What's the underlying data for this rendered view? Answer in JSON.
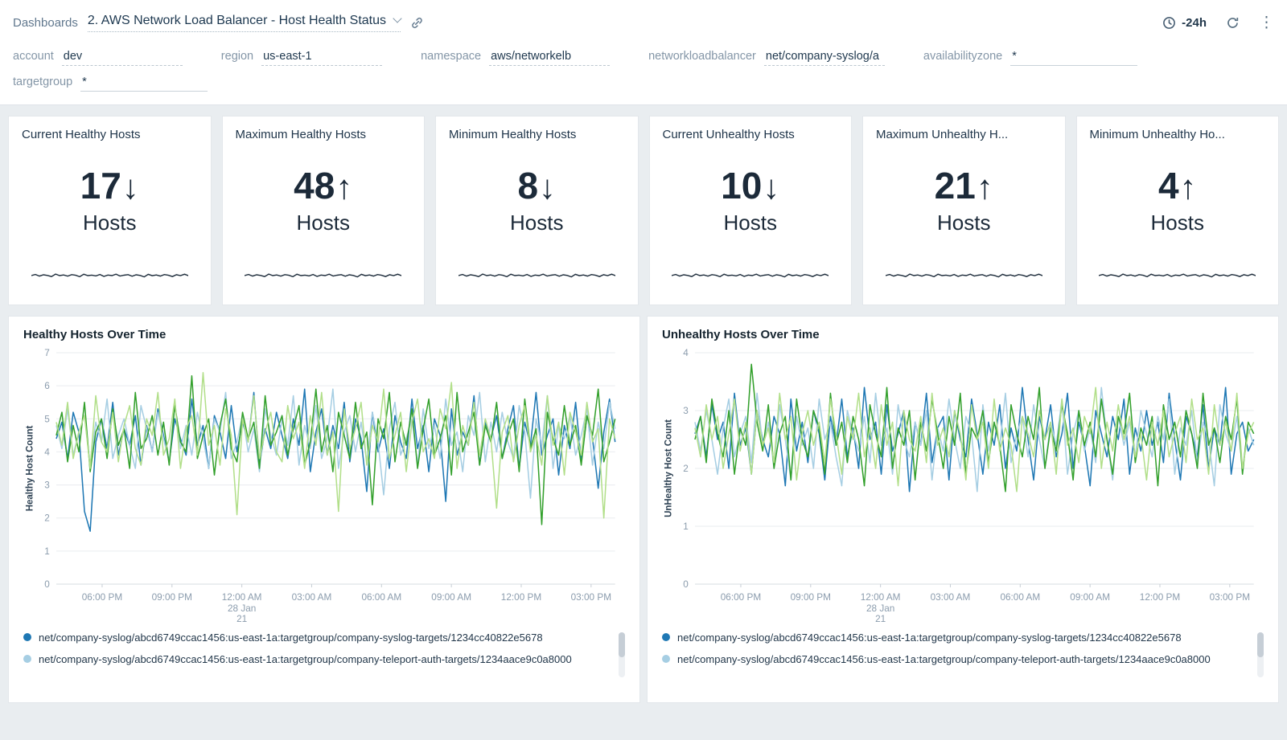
{
  "header": {
    "breadcrumb": "Dashboards",
    "title": "2. AWS Network Load Balancer - Host Health Status",
    "time_range": "-24h"
  },
  "filters": [
    {
      "label": "account",
      "value": "dev"
    },
    {
      "label": "region",
      "value": "us-east-1"
    },
    {
      "label": "namespace",
      "value": "aws/networkelb"
    },
    {
      "label": "networkloadbalancer",
      "value": "net/company-syslog/a"
    },
    {
      "label": "availabilityzone",
      "value": "*"
    },
    {
      "label": "targetgroup",
      "value": "*"
    }
  ],
  "stat_panels": [
    {
      "title": "Current Healthy Hosts",
      "value": "17",
      "arrow": "↓",
      "unit": "Hosts"
    },
    {
      "title": "Maximum Healthy Hosts",
      "value": "48",
      "arrow": "↑",
      "unit": "Hosts"
    },
    {
      "title": "Minimum Healthy Hosts",
      "value": "8",
      "arrow": "↓",
      "unit": "Hosts"
    },
    {
      "title": "Current Unhealthy Hosts",
      "value": "10",
      "arrow": "↓",
      "unit": "Hosts"
    },
    {
      "title": "Maximum Unhealthy H...",
      "value": "21",
      "arrow": "↑",
      "unit": "Hosts"
    },
    {
      "title": "Minimum Unhealthy Ho...",
      "value": "4",
      "arrow": "↑",
      "unit": "Hosts"
    }
  ],
  "sparkline": [
    0.5,
    0.62,
    0.45,
    0.58,
    0.52,
    0.4,
    0.66,
    0.5,
    0.57,
    0.44,
    0.6,
    0.53,
    0.38,
    0.64,
    0.5,
    0.55,
    0.47,
    0.62,
    0.42,
    0.56,
    0.5,
    0.65,
    0.46,
    0.54,
    0.6,
    0.43,
    0.58,
    0.52,
    0.37,
    0.63,
    0.49,
    0.57,
    0.45,
    0.61,
    0.53,
    0.4,
    0.59,
    0.5,
    0.64,
    0.48
  ],
  "chart_data": [
    {
      "type": "line",
      "title": "Healthy Hosts Over Time",
      "ylabel": "Healthy Host Count",
      "ylim": [
        0,
        7
      ],
      "x_ticks": [
        "06:00 PM",
        "09:00 PM",
        "12:00 AM",
        "03:00 AM",
        "06:00 AM",
        "09:00 AM",
        "12:00 PM",
        "03:00 PM"
      ],
      "x_date": [
        "28 Jan",
        "21"
      ],
      "date_tick_index": 2,
      "grid": true,
      "legend_position": "bottom",
      "legend": [
        {
          "color": "#1f78b4",
          "label": "net/company-syslog/abcd6749ccac1456:us-east-1a:targetgroup/company-syslog-targets/1234cc40822e5678"
        },
        {
          "color": "#a6cee3",
          "label": "net/company-syslog/abcd6749ccac1456:us-east-1a:targetgroup/company-teleport-auth-targets/1234aace9c0a8000"
        }
      ],
      "series": [
        {
          "name": "net/company-syslog/abcd6749ccac1456:us-east-1a:targetgroup/company-syslog-targets/1234cc40822e5678",
          "color": "#1f78b4",
          "values": [
            4.4,
            4.9,
            3.8,
            5.2,
            4.6,
            2.2,
            1.6,
            4.3,
            5.0,
            4.1,
            5.5,
            3.9,
            4.7,
            4.2,
            5.1,
            3.6,
            4.8,
            4.0,
            5.3,
            4.5,
            3.7,
            5.0,
            4.4,
            3.9,
            5.6,
            4.2,
            4.8,
            3.5,
            5.1,
            4.6,
            3.8,
            5.4,
            4.0,
            4.9,
            4.3,
            5.8,
            3.6,
            4.7,
            4.1,
            5.2,
            4.5,
            3.8,
            5.0,
            4.2,
            5.9,
            3.4,
            4.6,
            5.3,
            3.9,
            4.8,
            4.1,
            5.5,
            3.7,
            5.0,
            4.4,
            2.8,
            5.2,
            4.0,
            4.7,
            3.5,
            5.1,
            4.3,
            3.8,
            5.6,
            4.1,
            4.8,
            3.4,
            5.0,
            4.5,
            2.5,
            5.3,
            3.9,
            4.6,
            4.2,
            5.7,
            3.6,
            4.9,
            4.4,
            5.1,
            3.8,
            4.7,
            5.4,
            3.5,
            4.9,
            4.2,
            5.8,
            3.9,
            4.5,
            5.0,
            3.3,
            4.8,
            4.1,
            5.5,
            3.7,
            5.1,
            4.4,
            2.9,
            4.6,
            5.6,
            4.3
          ]
        },
        {
          "name": "net/company-syslog/abcd6749ccac1456:us-east-1a:targetgroup/company-teleport-auth-targets/1234aace9c0a8000",
          "color": "#a6cee3",
          "values": [
            4.8,
            4.1,
            5.3,
            3.9,
            4.6,
            5.1,
            3.6,
            4.9,
            4.3,
            5.6,
            3.8,
            4.5,
            5.0,
            4.2,
            3.5,
            5.4,
            4.7,
            4.0,
            5.2,
            4.4,
            3.7,
            5.5,
            4.1,
            4.8,
            3.9,
            5.2,
            4.4,
            3.5,
            5.0,
            4.6,
            5.8,
            3.8,
            4.3,
            5.1,
            4.0,
            4.7,
            3.4,
            5.3,
            4.5,
            3.9,
            5.0,
            4.2,
            5.7,
            3.6,
            4.8,
            4.1,
            5.4,
            3.8,
            4.4,
            5.9,
            3.5,
            4.6,
            5.1,
            4.0,
            4.9,
            3.7,
            5.2,
            4.3,
            2.7,
            4.7,
            5.5,
            3.9,
            4.4,
            5.0,
            3.6,
            5.3,
            4.1,
            4.8,
            3.8,
            5.6,
            4.2,
            4.6,
            3.4,
            5.1,
            4.5,
            5.8,
            3.7,
            4.9,
            4.0,
            5.2,
            4.3,
            3.8,
            5.4,
            4.6,
            2.6,
            5.0,
            4.2,
            5.7,
            3.5,
            4.8,
            4.4,
            5.1,
            3.9,
            4.5,
            5.3,
            3.6,
            4.9,
            4.1,
            5.5,
            4.7
          ]
        },
        {
          "name": "",
          "color": "#33a02c",
          "values": [
            4.5,
            5.2,
            3.7,
            4.8,
            4.0,
            5.5,
            3.4,
            4.6,
            5.0,
            3.8,
            5.3,
            4.2,
            4.7,
            3.5,
            5.8,
            4.1,
            4.4,
            5.1,
            3.9,
            4.9,
            3.6,
            5.4,
            4.3,
            4.0,
            6.3,
            3.8,
            4.5,
            5.0,
            3.3,
            4.8,
            5.6,
            4.1,
            3.7,
            5.2,
            4.4,
            4.9,
            3.5,
            5.7,
            4.2,
            4.6,
            5.1,
            3.9,
            4.7,
            5.4,
            3.6,
            4.3,
            5.9,
            4.0,
            4.8,
            3.4,
            5.2,
            4.5,
            3.8,
            5.5,
            4.1,
            4.6,
            2.4,
            5.0,
            4.4,
            5.8,
            3.7,
            4.9,
            4.2,
            5.3,
            3.5,
            4.7,
            5.6,
            3.9,
            4.4,
            5.1,
            3.3,
            5.8,
            4.0,
            4.6,
            5.2,
            3.6,
            4.8,
            4.3,
            5.5,
            3.8,
            4.5,
            5.0,
            3.4,
            5.6,
            4.1,
            4.7,
            1.8,
            5.2,
            4.4,
            3.9,
            5.4,
            4.2,
            4.8,
            3.6,
            5.1,
            4.5,
            5.9,
            3.7,
            4.3,
            5.0
          ]
        },
        {
          "name": "",
          "color": "#b2df8a",
          "values": [
            4.9,
            4.2,
            5.5,
            3.8,
            4.6,
            5.1,
            3.5,
            5.7,
            4.3,
            4.0,
            5.2,
            3.7,
            4.8,
            5.4,
            4.1,
            3.6,
            5.0,
            4.5,
            5.8,
            3.9,
            4.4,
            5.6,
            3.5,
            4.7,
            5.1,
            3.9,
            6.4,
            4.2,
            4.8,
            3.6,
            5.3,
            4.5,
            2.1,
            5.0,
            4.3,
            5.7,
            3.8,
            4.6,
            5.2,
            4.0,
            3.7,
            5.4,
            4.4,
            4.9,
            3.5,
            5.1,
            4.2,
            5.8,
            3.9,
            4.6,
            2.2,
            5.3,
            4.1,
            4.7,
            5.5,
            3.6,
            4.8,
            4.3,
            5.9,
            3.8,
            4.5,
            5.2,
            3.4,
            4.9,
            5.6,
            4.0,
            4.4,
            3.8,
            5.3,
            4.7,
            6.1,
            3.5,
            4.8,
            4.2,
            5.5,
            3.9,
            5.0,
            4.4,
            2.3,
            4.6,
            5.1,
            3.7,
            4.8,
            5.4,
            4.0,
            4.5,
            3.6,
            5.7,
            4.2,
            4.9,
            3.3,
            5.2,
            4.6,
            3.9,
            5.5,
            4.3,
            4.7,
            2.0,
            5.0,
            4.4
          ]
        }
      ]
    },
    {
      "type": "line",
      "title": "Unhealthy Hosts Over Time",
      "ylabel": "UnHealthy Host Count",
      "ylim": [
        0,
        4
      ],
      "x_ticks": [
        "06:00 PM",
        "09:00 PM",
        "12:00 AM",
        "03:00 AM",
        "06:00 AM",
        "09:00 AM",
        "12:00 PM",
        "03:00 PM"
      ],
      "x_date": [
        "28 Jan",
        "21"
      ],
      "date_tick_index": 2,
      "grid": true,
      "legend_position": "bottom",
      "legend": [
        {
          "color": "#1f78b4",
          "label": "net/company-syslog/abcd6749ccac1456:us-east-1a:targetgroup/company-syslog-targets/1234cc40822e5678"
        },
        {
          "color": "#a6cee3",
          "label": "net/company-syslog/abcd6749ccac1456:us-east-1a:targetgroup/company-teleport-auth-targets/1234aace9c0a8000"
        }
      ],
      "series": [
        {
          "name": "net/company-syslog/abcd6749ccac1456:us-east-1a:targetgroup/company-syslog-targets/1234cc40822e5678",
          "color": "#1f78b4",
          "values": [
            2.6,
            2.9,
            2.2,
            3.1,
            2.5,
            2.8,
            2.0,
            3.3,
            2.4,
            2.7,
            1.9,
            3.0,
            2.5,
            2.2,
            2.9,
            2.6,
            1.7,
            3.2,
            2.3,
            2.8,
            2.1,
            3.0,
            2.6,
            1.8,
            2.9,
            2.4,
            3.2,
            2.2,
            2.7,
            2.0,
            3.4,
            2.5,
            2.8,
            1.9,
            3.1,
            2.3,
            2.6,
            3.0,
            1.6,
            2.8,
            2.4,
            3.3,
            2.1,
            2.7,
            2.9,
            1.8,
            3.0,
            2.5,
            2.2,
            3.2,
            2.6,
            1.9,
            2.8,
            2.4,
            3.1,
            2.0,
            2.7,
            2.3,
            3.4,
            2.5,
            1.8,
            2.9,
            2.5,
            3.1,
            2.2,
            2.6,
            3.3,
            2.0,
            2.8,
            2.4,
            1.7,
            3.0,
            2.6,
            2.2,
            2.9,
            2.5,
            3.2,
            1.9,
            2.7,
            2.3,
            3.0,
            2.4,
            2.8,
            2.1,
            3.3,
            2.5,
            1.8,
            2.9,
            2.6,
            2.2,
            3.1,
            2.0,
            2.7,
            2.4,
            3.4,
            1.9,
            2.6,
            2.8,
            2.3,
            2.5
          ]
        },
        {
          "name": "net/company-syslog/abcd6749ccac1456:us-east-1a:targetgroup/company-teleport-auth-targets/1234aace9c0a8000",
          "color": "#a6cee3",
          "values": [
            2.8,
            2.3,
            3.0,
            2.5,
            1.9,
            2.7,
            3.2,
            2.2,
            2.6,
            2.9,
            2.1,
            3.3,
            2.4,
            2.8,
            2.0,
            3.1,
            2.5,
            1.8,
            2.9,
            2.4,
            2.7,
            2.0,
            3.2,
            2.5,
            2.8,
            2.2,
            1.7,
            3.0,
            2.6,
            2.3,
            2.9,
            2.1,
            3.3,
            2.4,
            2.7,
            1.9,
            3.1,
            2.5,
            2.2,
            2.8,
            2.4,
            3.0,
            1.8,
            2.7,
            2.3,
            3.2,
            2.5,
            2.0,
            2.9,
            2.6,
            1.6,
            3.1,
            2.3,
            2.8,
            2.4,
            3.3,
            2.1,
            2.6,
            2.9,
            2.2,
            3.1,
            2.5,
            2.0,
            2.8,
            2.4,
            3.2,
            1.9,
            2.6,
            3.0,
            2.3,
            2.7,
            2.1,
            3.4,
            2.5,
            1.8,
            2.9,
            2.4,
            2.8,
            2.2,
            3.0,
            2.6,
            2.2,
            2.9,
            2.5,
            3.2,
            1.9,
            2.7,
            2.4,
            3.0,
            2.1,
            2.8,
            2.5,
            1.7,
            3.1,
            2.6,
            2.3,
            2.9,
            2.0,
            2.7,
            2.4
          ]
        },
        {
          "name": "",
          "color": "#33a02c",
          "values": [
            2.5,
            2.9,
            2.1,
            3.2,
            2.6,
            2.2,
            3.0,
            1.9,
            2.7,
            2.4,
            3.8,
            2.8,
            2.3,
            3.1,
            2.0,
            2.6,
            2.9,
            1.8,
            3.2,
            2.5,
            2.2,
            3.0,
            2.7,
            1.9,
            3.3,
            2.4,
            2.8,
            2.1,
            2.9,
            2.5,
            1.7,
            3.1,
            2.6,
            2.2,
            3.4,
            2.0,
            2.7,
            2.4,
            3.0,
            1.8,
            2.8,
            2.3,
            3.2,
            2.6,
            2.0,
            2.9,
            2.4,
            3.3,
            1.9,
            2.7,
            2.5,
            3.0,
            2.1,
            2.8,
            2.4,
            1.6,
            3.1,
            2.6,
            2.2,
            2.9,
            2.5,
            3.4,
            2.0,
            2.7,
            2.3,
            3.1,
            2.6,
            1.8,
            3.0,
            2.4,
            2.8,
            2.2,
            3.2,
            2.5,
            1.9,
            2.9,
            2.6,
            3.3,
            2.1,
            2.7,
            2.4,
            2.9,
            1.7,
            3.1,
            2.5,
            2.8,
            2.2,
            3.0,
            2.6,
            2.0,
            3.3,
            2.4,
            2.7,
            2.1,
            2.9,
            2.5,
            3.2,
            1.9,
            2.8,
            2.6
          ]
        },
        {
          "name": "",
          "color": "#b2df8a",
          "values": [
            2.7,
            2.2,
            3.1,
            2.5,
            2.9,
            2.0,
            2.6,
            3.2,
            2.3,
            2.8,
            1.9,
            3.0,
            2.4,
            2.7,
            2.1,
            3.3,
            2.5,
            2.9,
            1.8,
            2.6,
            3.0,
            2.4,
            2.8,
            2.1,
            3.2,
            2.6,
            1.9,
            2.9,
            2.5,
            3.3,
            2.2,
            2.7,
            2.0,
            3.1,
            2.4,
            2.8,
            1.7,
            3.0,
            2.5,
            2.3,
            2.9,
            2.1,
            3.3,
            2.4,
            2.7,
            2.2,
            3.0,
            2.6,
            1.8,
            3.1,
            2.5,
            2.8,
            2.0,
            3.2,
            2.3,
            2.7,
            2.4,
            1.6,
            2.9,
            2.6,
            2.2,
            3.0,
            2.5,
            2.8,
            1.9,
            3.2,
            2.4,
            2.7,
            2.1,
            2.9,
            2.6,
            3.4,
            2.0,
            2.8,
            2.3,
            3.1,
            2.5,
            2.9,
            2.2,
            2.6,
            1.8,
            2.8,
            2.4,
            3.0,
            2.2,
            2.6,
            2.9,
            2.1,
            3.2,
            2.5,
            2.7,
            1.9,
            3.1,
            2.4,
            2.8,
            2.3,
            3.3,
            2.0,
            2.6,
            2.8
          ]
        }
      ]
    }
  ]
}
